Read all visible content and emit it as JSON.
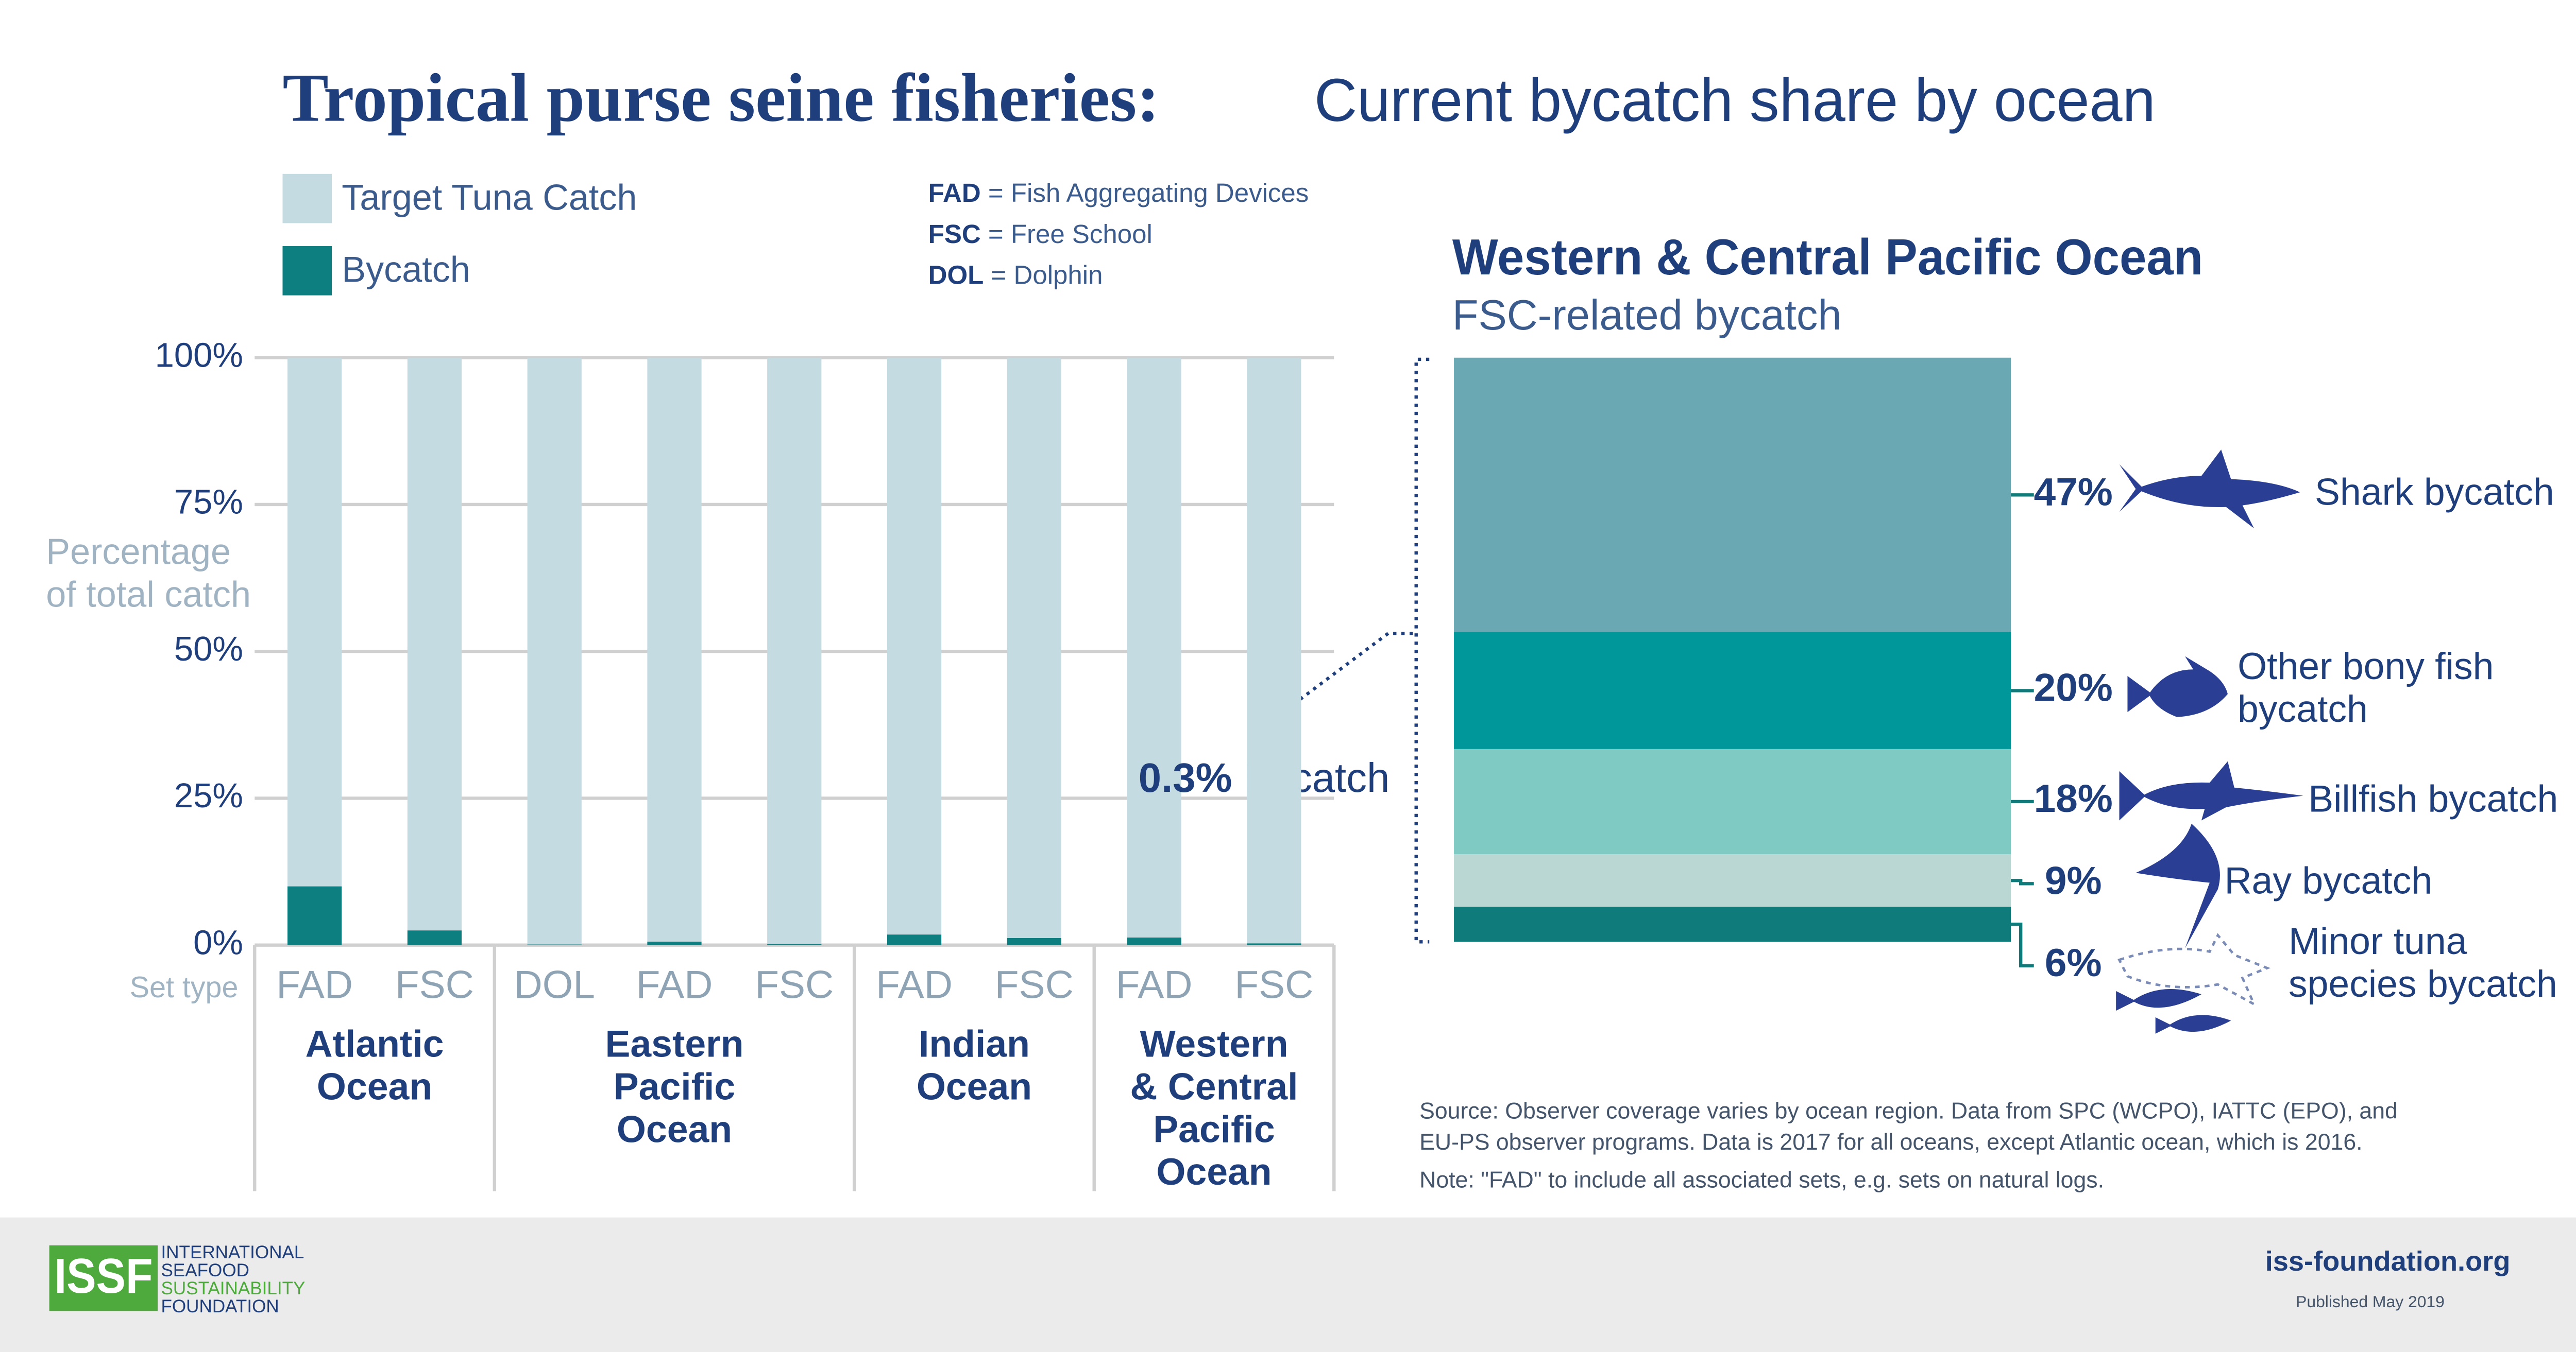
{
  "chart_data": [
    {
      "type": "bar",
      "stacked": true,
      "title": "Tropical purse seine fisheries:",
      "subtitle": "Current bycatch share by ocean",
      "ylabel": [
        "Percentage",
        "of total catch"
      ],
      "xlabel": "Set type",
      "groups": [
        {
          "label": [
            "Atlantic",
            "Ocean"
          ],
          "categories": [
            "FAD",
            "FSC"
          ]
        },
        {
          "label": [
            "Eastern",
            "Pacific",
            "Ocean"
          ],
          "categories": [
            "DOL",
            "FAD",
            "FSC"
          ]
        },
        {
          "label": [
            "Indian",
            "Ocean"
          ],
          "categories": [
            "FAD",
            "FSC"
          ]
        },
        {
          "label": [
            "Western",
            "& Central",
            "Pacific",
            "Ocean"
          ],
          "categories": [
            "FAD",
            "FSC"
          ]
        }
      ],
      "series": [
        {
          "name": "Bycatch",
          "color": "#0e7f80",
          "values": [
            10,
            2.5,
            0.1,
            0.6,
            0.2,
            1.8,
            1.2,
            1.3,
            0.3
          ],
          "value_labels": [
            null,
            null,
            null,
            null,
            null,
            null,
            null,
            null,
            "0.3%"
          ]
        },
        {
          "name": "Target Tuna Catch",
          "color": "#c5dbe2",
          "values": [
            90,
            97.5,
            99.9,
            99.4,
            99.8,
            98.2,
            98.8,
            98.7,
            99.7
          ]
        }
      ],
      "annotation": "Bycatch",
      "ylim": [
        0,
        100
      ],
      "yticks": [
        {
          "value": 0,
          "label": "0%"
        },
        {
          "value": 25,
          "label": "25%"
        },
        {
          "value": 50,
          "label": "50%"
        },
        {
          "value": 75,
          "label": "75%"
        },
        {
          "value": 100,
          "label": "100%"
        }
      ],
      "grid": true,
      "abbreviations": [
        {
          "abbr": "FAD",
          "meaning": " = Fish Aggregating Devices"
        },
        {
          "abbr": "FSC",
          "meaning": " = Free School"
        },
        {
          "abbr": "DOL",
          "meaning": " = Dolphin"
        }
      ]
    },
    {
      "type": "bar",
      "stacked": true,
      "title": "Western & Central Pacific Ocean",
      "subtitle": "FSC-related bycatch",
      "ylim": [
        0,
        100
      ],
      "series": [
        {
          "name": "Minor tuna species bycatch",
          "color": "#0f7b7a",
          "values": [
            6
          ],
          "value_labels": [
            "6%"
          ]
        },
        {
          "name": "Ray bycatch",
          "color": "#bad7d4",
          "values": [
            9
          ],
          "value_labels": [
            "9%"
          ]
        },
        {
          "name": "Billfish bycatch",
          "color": "#80cac4",
          "values": [
            18
          ],
          "value_labels": [
            "18%"
          ]
        },
        {
          "name": "Other bony fish bycatch",
          "color": "#00979a",
          "values": [
            20
          ],
          "value_labels": [
            "20%"
          ]
        },
        {
          "name": "Shark bycatch",
          "color": "#6aa8b3",
          "values": [
            47
          ],
          "value_labels": [
            "47%"
          ]
        }
      ],
      "source": [
        "Source: Observer coverage varies by ocean region. Data from SPC (WCPO), IATTC (EPO), and",
        "EU-PS observer programs. Data is 2017 for all oceans, except Atlantic ocean, which is 2016."
      ],
      "note": "Note: \"FAD\" to include all associated sets, e.g. sets on natural logs."
    }
  ],
  "footer": {
    "logo": "ISSF",
    "organization": [
      "INTERNATIONAL",
      "SEAFOOD",
      "SUSTAINABILITY",
      "FOUNDATION"
    ],
    "website": "iss-foundation.org",
    "published": "Published May 2019"
  }
}
